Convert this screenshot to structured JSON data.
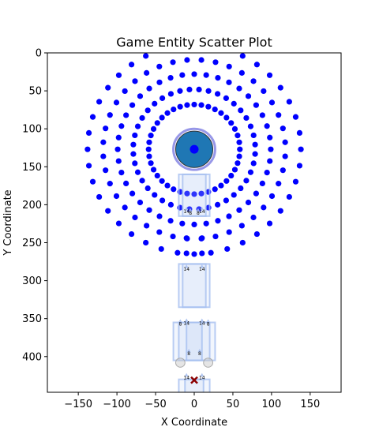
{
  "chart_data": {
    "type": "scatter",
    "title": "Game Entity Scatter Plot",
    "xlabel": "X Coordinate",
    "ylabel": "Y Coordinate",
    "xlim": [
      -190,
      190
    ],
    "ylim": [
      0,
      447
    ],
    "y_inverted": true,
    "grid": false,
    "x_ticks": [
      -150,
      -100,
      -50,
      0,
      50,
      100,
      150
    ],
    "y_ticks": [
      0,
      50,
      100,
      150,
      200,
      250,
      300,
      350,
      400
    ],
    "colors": {
      "dots": "#0000ff",
      "center_fill": "#1f77b4",
      "center_ring": "#8c8ce6",
      "boxes": "#a8c0f0",
      "cross": "#8b0000",
      "ghost": "#cccccc"
    },
    "center": {
      "x": 0,
      "y": 127,
      "r_outer": 27,
      "r_inner": 24
    },
    "center_dot": {
      "x": 0,
      "y": 127
    },
    "rings": [
      {
        "radius": 59,
        "count": 40
      },
      {
        "radius": 79,
        "count": 40
      },
      {
        "radius": 99,
        "count": 40
      },
      {
        "radius": 118,
        "count": 40
      },
      {
        "radius": 138,
        "count": 40
      }
    ],
    "column_dots": [
      {
        "x": -10,
        "y": 244
      },
      {
        "x": 10,
        "y": 244
      },
      {
        "x": -10,
        "y": 264
      },
      {
        "x": 10,
        "y": 264
      }
    ],
    "boxes": [
      {
        "x0": -20,
        "x1": 20,
        "y0": 160,
        "y1": 215
      },
      {
        "x0": -15,
        "x1": 15,
        "y0": 160,
        "y1": 215
      },
      {
        "x0": -20,
        "x1": 20,
        "y0": 278,
        "y1": 335
      },
      {
        "x0": -15,
        "x1": 15,
        "y0": 278,
        "y1": 335
      },
      {
        "x0": -27,
        "x1": 27,
        "y0": 355,
        "y1": 405
      },
      {
        "x0": -20,
        "x1": 20,
        "y0": 355,
        "y1": 405
      },
      {
        "x0": -10,
        "x1": 10,
        "y0": 355,
        "y1": 405
      },
      {
        "x0": -20,
        "x1": 20,
        "y0": 430,
        "y1": 468
      },
      {
        "x0": -12,
        "x1": 12,
        "y0": 430,
        "y1": 468
      }
    ],
    "labels": [
      {
        "x": -10,
        "y": 211,
        "text": "14"
      },
      {
        "x": 10,
        "y": 211,
        "text": "14"
      },
      {
        "x": -5,
        "y": 213,
        "text": "8"
      },
      {
        "x": 5,
        "y": 213,
        "text": "8"
      },
      {
        "x": -10,
        "y": 287,
        "text": "14"
      },
      {
        "x": 10,
        "y": 287,
        "text": "14"
      },
      {
        "x": -18,
        "y": 359,
        "text": "8"
      },
      {
        "x": -10,
        "y": 358,
        "text": "14"
      },
      {
        "x": 10,
        "y": 358,
        "text": "14"
      },
      {
        "x": 18,
        "y": 359,
        "text": "8"
      },
      {
        "x": -7,
        "y": 398,
        "text": "8"
      },
      {
        "x": 7,
        "y": 398,
        "text": "8"
      },
      {
        "x": -10,
        "y": 430,
        "text": "14"
      },
      {
        "x": 10,
        "y": 430,
        "text": "14"
      }
    ],
    "ghosts": [
      {
        "x": -18,
        "y": 408,
        "r": 6
      },
      {
        "x": 18,
        "y": 408,
        "r": 6
      }
    ],
    "cross": {
      "x": 0,
      "y": 431
    }
  }
}
